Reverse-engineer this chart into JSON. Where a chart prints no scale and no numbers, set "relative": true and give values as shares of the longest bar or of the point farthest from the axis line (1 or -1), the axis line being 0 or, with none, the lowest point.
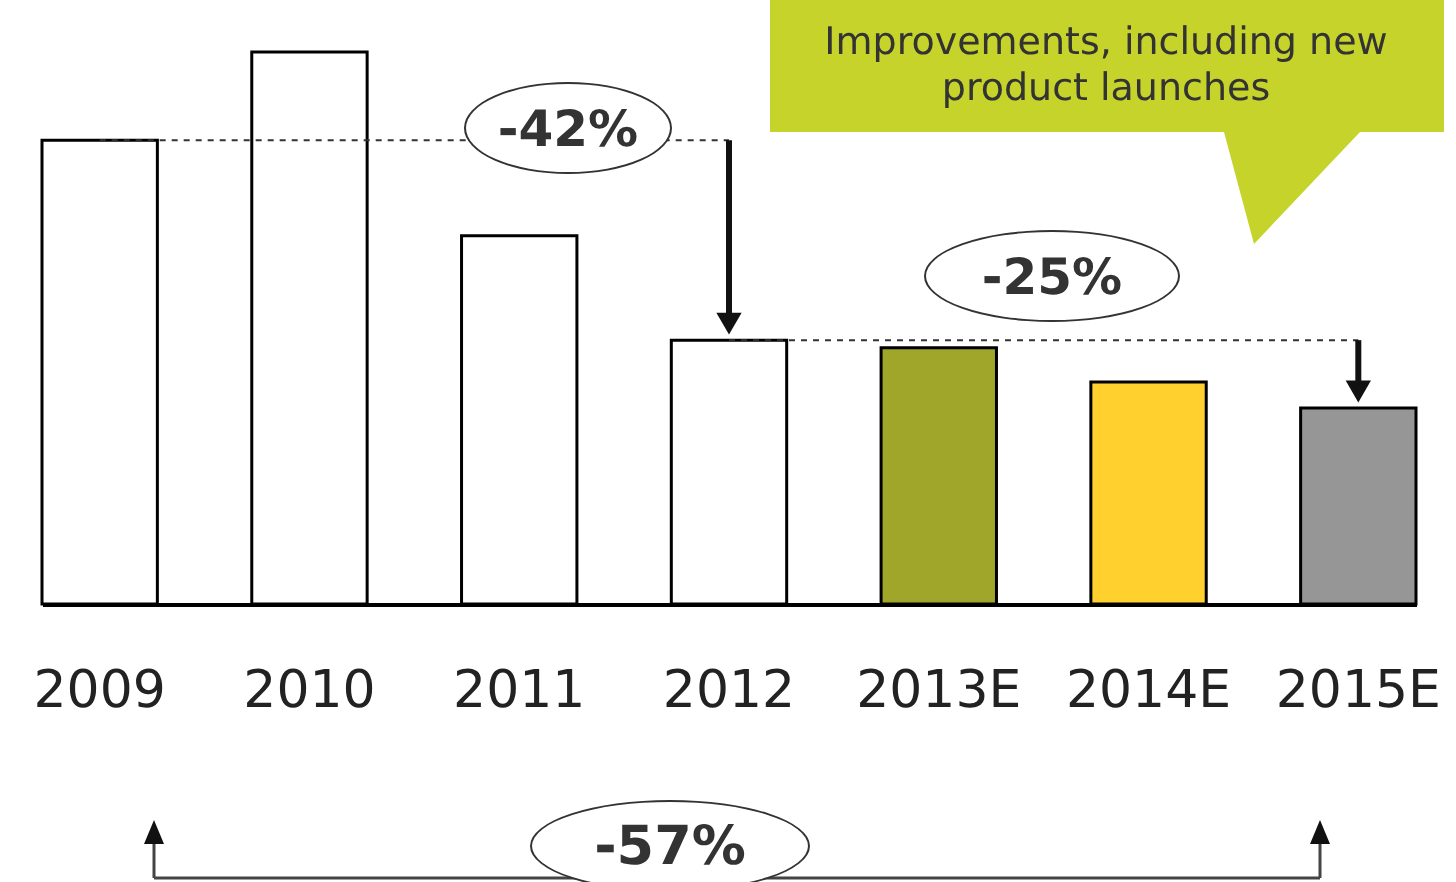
{
  "chart_data": {
    "type": "bar",
    "relative": true,
    "categories": [
      "2009",
      "2010",
      "2011",
      "2012",
      "2013E",
      "2014E",
      "2015E"
    ],
    "values": [
      0.84,
      1,
      0.667,
      0.478,
      0.464,
      0.402,
      0.355
    ],
    "colors": [
      "#ffffff",
      "#ffffff",
      "#ffffff",
      "#ffffff",
      "#a0a629",
      "#ffd02e",
      "#969696"
    ],
    "ref_lines": [
      {
        "axis": "y",
        "value": 0.84,
        "line_style": "dashed",
        "color": "#333333"
      },
      {
        "axis": "y",
        "value": 0.478,
        "line_style": "dashed",
        "color": "#333333"
      }
    ],
    "annotations": [
      "Improvements, including new product launches",
      "-42%",
      "-25%",
      "-57%"
    ]
  }
}
